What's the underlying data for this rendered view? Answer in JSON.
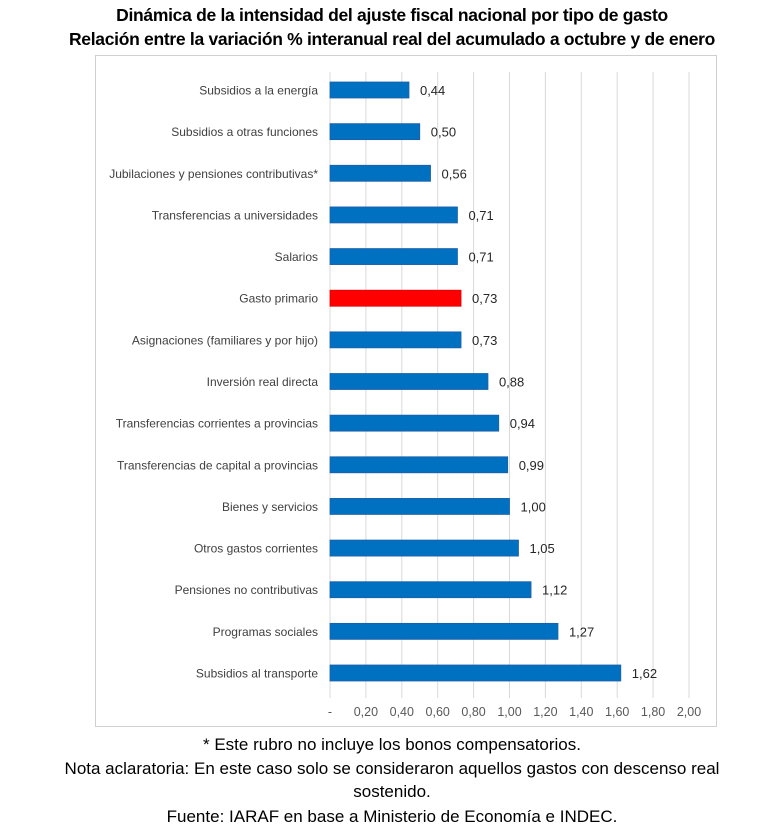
{
  "chart_data": {
    "type": "bar",
    "orientation": "horizontal",
    "title": "Dinámica de la intensidad del ajuste fiscal nacional por tipo de gasto",
    "subtitle": "Relación entre la variación % interanual real del acumulado a octubre y de enero",
    "xlabel": "",
    "ylabel": "",
    "xlim": [
      0,
      2.0
    ],
    "grid": "vertical",
    "legend": "none",
    "x_tick_labels": [
      "-",
      "0,20",
      "0,40",
      "0,60",
      "0,80",
      "1,00",
      "1,20",
      "1,40",
      "1,60",
      "1,80",
      "2,00"
    ],
    "x_ticks": [
      0,
      0.2,
      0.4,
      0.6,
      0.8,
      1.0,
      1.2,
      1.4,
      1.6,
      1.8,
      2.0
    ],
    "bar_color": "#0070C0",
    "highlight_color": "#FF0000",
    "bars": [
      {
        "category": "Subsidios a la energía",
        "value": 0.44,
        "label": "0,44",
        "highlight": false
      },
      {
        "category": "Subsidios a otras funciones",
        "value": 0.5,
        "label": "0,50",
        "highlight": false
      },
      {
        "category": "Jubilaciones y pensiones contributivas*",
        "value": 0.56,
        "label": "0,56",
        "highlight": false
      },
      {
        "category": "Transferencias a universidades",
        "value": 0.71,
        "label": "0,71",
        "highlight": false
      },
      {
        "category": "Salarios",
        "value": 0.71,
        "label": "0,71",
        "highlight": false
      },
      {
        "category": "Gasto primario",
        "value": 0.73,
        "label": "0,73",
        "highlight": true
      },
      {
        "category": "Asignaciones (familiares y por hijo)",
        "value": 0.73,
        "label": "0,73",
        "highlight": false
      },
      {
        "category": "Inversión real directa",
        "value": 0.88,
        "label": "0,88",
        "highlight": false
      },
      {
        "category": "Transferencias corrientes a provincias",
        "value": 0.94,
        "label": "0,94",
        "highlight": false
      },
      {
        "category": "Transferencias de capital a provincias",
        "value": 0.99,
        "label": "0,99",
        "highlight": false
      },
      {
        "category": "Bienes y servicios",
        "value": 1.0,
        "label": "1,00",
        "highlight": false
      },
      {
        "category": "Otros gastos corrientes",
        "value": 1.05,
        "label": "1,05",
        "highlight": false
      },
      {
        "category": "Pensiones no contributivas",
        "value": 1.12,
        "label": "1,12",
        "highlight": false
      },
      {
        "category": "Programas sociales",
        "value": 1.27,
        "label": "1,27",
        "highlight": false
      },
      {
        "category": "Subsidios al transporte",
        "value": 1.62,
        "label": "1,62",
        "highlight": false
      }
    ]
  },
  "notes": {
    "footnote": "* Este rubro no incluye los bonos compensatorios.",
    "clarification_line1": "Nota aclaratoria: En este caso solo se consideraron aquellos gastos con descenso real",
    "clarification_line2": "sostenido.",
    "source": "Fuente: IARAF en base a Ministerio de Economía e INDEC."
  }
}
